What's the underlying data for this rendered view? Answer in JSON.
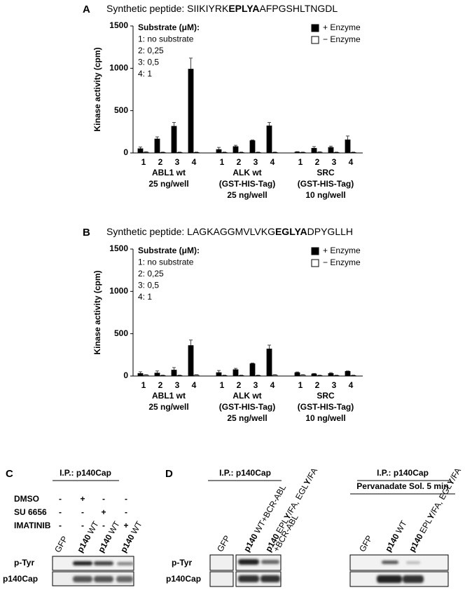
{
  "chart_data": [
    {
      "type": "bar",
      "label": "A",
      "title": [
        "Synthetic peptide: SIIKIYRK",
        "EPLYA",
        "AFPGSHLTNGDL"
      ],
      "y_label": "Kinase activity (cpm)",
      "annotations": [
        "Substrate (μM):",
        "1: no substrate",
        "2: 0,25",
        "3: 0,5",
        "4: 1"
      ],
      "categories": [
        "1",
        "2",
        "3",
        "4",
        "1",
        "2",
        "3",
        "4",
        "1",
        "2",
        "3",
        "4"
      ],
      "groups": [
        [
          "ABL1 wt",
          "25 ng/well"
        ],
        [
          "ALK wt",
          "(GST-HIS-Tag)",
          "25 ng/well"
        ],
        [
          "SRC",
          "(GST-HIS-Tag)",
          "10 ng/well"
        ]
      ],
      "series": [
        {
          "name": "+ Enzyme",
          "color": "#000000",
          "values": [
            50,
            165,
            315,
            990,
            40,
            75,
            145,
            320,
            10,
            55,
            65,
            155
          ],
          "errors": [
            20,
            25,
            45,
            130,
            25,
            15,
            8,
            40,
            5,
            20,
            15,
            45
          ]
        },
        {
          "name": "− Enzyme",
          "color": "#ffffff",
          "values": [
            8,
            5,
            5,
            5,
            5,
            5,
            5,
            5,
            5,
            8,
            5,
            5
          ],
          "errors": [
            5,
            5,
            5,
            5,
            5,
            5,
            5,
            5,
            5,
            5,
            5,
            5
          ]
        }
      ],
      "ylim": [
        0,
        1500
      ],
      "yticks": [
        0,
        500,
        1000,
        1500
      ],
      "legend": "upper right"
    },
    {
      "type": "bar",
      "label": "B",
      "title": [
        "Synthetic peptide: LAGKAGGMVLVKG",
        "EGLYA",
        "DPYGLLH"
      ],
      "y_label": "Kinase activity (cpm)",
      "annotations": [
        "Substrate (μM):",
        "1: no substrate",
        "2: 0,25",
        "3: 0,5",
        "4: 1"
      ],
      "categories": [
        "1",
        "2",
        "3",
        "4",
        "1",
        "2",
        "3",
        "4",
        "1",
        "2",
        "3",
        "4"
      ],
      "groups": [
        [
          "ABL1 wt",
          "25 ng/well"
        ],
        [
          "ALK wt",
          "(GST-HIS-Tag)",
          "25 ng/well"
        ],
        [
          "SRC",
          "(GST-HIS-Tag)",
          "10 ng/well"
        ]
      ],
      "series": [
        {
          "name": "+ Enzyme",
          "color": "#000000",
          "values": [
            30,
            35,
            70,
            360,
            40,
            75,
            145,
            320,
            40,
            25,
            30,
            55
          ],
          "errors": [
            20,
            25,
            30,
            65,
            25,
            15,
            8,
            45,
            8,
            5,
            10,
            5
          ]
        },
        {
          "name": "− Enzyme",
          "color": "#ffffff",
          "values": [
            10,
            5,
            5,
            10,
            5,
            5,
            5,
            10,
            10,
            5,
            5,
            5
          ],
          "errors": [
            5,
            5,
            5,
            5,
            5,
            5,
            5,
            5,
            5,
            5,
            5,
            5
          ]
        }
      ],
      "ylim": [
        0,
        1500
      ],
      "yticks": [
        0,
        500,
        1000,
        1500
      ],
      "legend": "upper right"
    }
  ],
  "panel_c": {
    "label": "C",
    "ip": "I.P.: p140Cap",
    "treatments": [
      {
        "name": "DMSO",
        "signs": [
          "-",
          "+",
          "-",
          "-"
        ]
      },
      {
        "name": "SU 6656",
        "signs": [
          "-",
          "-",
          "+",
          "-"
        ]
      },
      {
        "name": "IMATINIB",
        "signs": [
          "-",
          "-",
          "-",
          "+"
        ]
      }
    ],
    "lanes": [
      [
        [
          {
            "text": "GFP"
          }
        ]
      ],
      [
        [
          {
            "text": "p140",
            "bold": true
          },
          {
            "text": "WT"
          }
        ]
      ],
      [
        [
          {
            "text": "p140",
            "bold": true
          },
          {
            "text": "WT"
          }
        ]
      ],
      [
        [
          {
            "text": "p140",
            "bold": true
          },
          {
            "text": "WT"
          }
        ]
      ]
    ],
    "rows": [
      "p-Tyr",
      "p140Cap"
    ]
  },
  "panel_d": {
    "label": "D",
    "rows": [
      "p-Tyr",
      "p140Cap"
    ],
    "groups": [
      {
        "ip": "I.P.: p140Cap",
        "lanes": [
          [
            [
              {
                "text": "GFP"
              }
            ]
          ],
          [
            [
              {
                "text": "p140",
                "bold": true
              },
              {
                "text": "WT+BCR-ABL"
              }
            ]
          ],
          [
            [
              {
                "text": "p140",
                "bold": true
              },
              {
                "text": "EPL"
              },
              {
                "text": "Y",
                "bold": true
              },
              {
                "text": "/FA, EGL"
              },
              {
                "text": "Y",
                "bold": true
              },
              {
                "text": "/FA"
              }
            ],
            [
              {
                "text": "+BCR-ABL"
              }
            ]
          ]
        ]
      },
      {
        "ip": "I.P.: p140Cap",
        "treatment": "Pervanadate Sol. 5 min",
        "lanes": [
          [
            [
              {
                "text": "GFP"
              }
            ]
          ],
          [
            [
              {
                "text": "p140",
                "bold": true
              },
              {
                "text": "WT"
              }
            ]
          ],
          [
            [
              {
                "text": "p140",
                "bold": true
              },
              {
                "text": "EPL"
              },
              {
                "text": "Y",
                "bold": true
              },
              {
                "text": "/FA, EGL"
              },
              {
                "text": "Y",
                "bold": true
              },
              {
                "text": "/FA"
              }
            ]
          ]
        ]
      }
    ]
  }
}
